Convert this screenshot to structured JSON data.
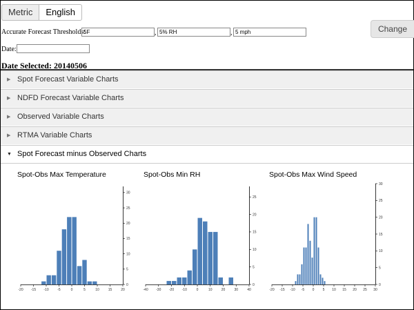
{
  "units": {
    "metric_label": "Metric",
    "english_label": "English",
    "selected": "English"
  },
  "thresholds": {
    "label": "Accurate Forecast Thresholds:",
    "temp": "5F",
    "rh": "5% RH",
    "wind": "5 mph",
    "sep1": ",",
    "sep2": ",",
    "change_label": "Change"
  },
  "date": {
    "label": "Date:",
    "value": "",
    "selected_text": "Date Selected: 20140506"
  },
  "accordion": [
    {
      "label": "Spot Forecast Variable Charts",
      "expanded": false
    },
    {
      "label": "NDFD Forecast Variable Charts",
      "expanded": false
    },
    {
      "label": "Observed Variable Charts",
      "expanded": false
    },
    {
      "label": "RTMA Variable Charts",
      "expanded": false
    },
    {
      "label": "Spot Forecast minus Observed Charts",
      "expanded": true
    }
  ],
  "colors": {
    "bar": "#4d7fb8"
  },
  "chart_data": [
    {
      "type": "bar",
      "title": "Spot-Obs Max Temperature",
      "bin_width": 2,
      "bins": [
        -12,
        -10,
        -8,
        -6,
        -4,
        -2,
        0,
        2,
        4,
        6,
        8,
        10
      ],
      "values": [
        1,
        3,
        3,
        11,
        18,
        22,
        22,
        6,
        8,
        1,
        1,
        0
      ],
      "xlim": [
        -20,
        20
      ],
      "xticks": [
        -20,
        -15,
        -10,
        -5,
        0,
        5,
        10,
        15,
        20
      ],
      "ylim": [
        0,
        32
      ],
      "yticks": [
        0,
        5,
        10,
        15,
        20,
        25,
        30
      ]
    },
    {
      "type": "bar",
      "title": "Spot-Obs Min RH",
      "bin_width": 4,
      "bins": [
        -24,
        -20,
        -16,
        -12,
        -8,
        -4,
        0,
        4,
        8,
        12,
        16,
        20,
        24
      ],
      "values": [
        1,
        1,
        2,
        2,
        4,
        10,
        19,
        18,
        15,
        15,
        2,
        0,
        2
      ],
      "xlim": [
        -40,
        40
      ],
      "xticks": [
        -40,
        -30,
        -20,
        -10,
        0,
        10,
        20,
        30,
        40
      ],
      "ylim": [
        0,
        28
      ],
      "yticks": [
        0,
        5,
        10,
        15,
        20,
        25
      ]
    },
    {
      "type": "bar",
      "title": "Spot-Obs Max Wind Speed",
      "bin_width": 1,
      "bins": [
        -9,
        -8,
        -7,
        -6,
        -5,
        -4,
        -3,
        -2,
        -1,
        0,
        1,
        2,
        3,
        4,
        5,
        6
      ],
      "values": [
        1,
        3,
        3,
        6,
        11,
        11,
        18,
        13,
        8,
        20,
        20,
        11,
        3,
        2,
        1,
        0
      ],
      "xlim": [
        -20,
        30
      ],
      "xticks": [
        -20,
        -15,
        -10,
        -5,
        0,
        5,
        10,
        15,
        20,
        25,
        30
      ],
      "ylim": [
        0,
        30
      ],
      "yticks": [
        0,
        5,
        10,
        15,
        20,
        25,
        30
      ]
    }
  ]
}
